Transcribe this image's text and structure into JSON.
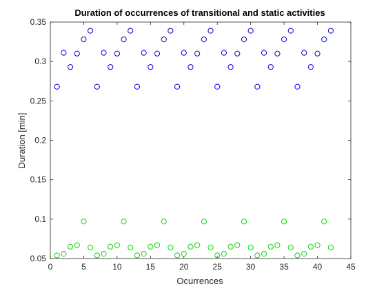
{
  "chart_data": {
    "type": "scatter",
    "title": "Duration of occurrences of transitional and static activities",
    "xlabel": "Ocurrences",
    "ylabel": "Duration [min]",
    "xlim": [
      0,
      45
    ],
    "ylim": [
      0.05,
      0.35
    ],
    "xticks": [
      0,
      5,
      10,
      15,
      20,
      25,
      30,
      35,
      40,
      45
    ],
    "yticks": [
      0.05,
      0.1,
      0.15,
      0.2,
      0.25,
      0.3,
      0.35
    ],
    "ytick_labels": [
      "0.05",
      "0.1",
      "0.15",
      "0.2",
      "0.25",
      "0.3",
      "0.35"
    ],
    "grid": false,
    "marker": "open-circle",
    "series": [
      {
        "color": "#0000cc",
        "x": [
          1,
          2,
          3,
          4,
          5,
          6,
          7,
          8,
          9,
          10,
          11,
          12,
          13,
          14,
          15,
          16,
          17,
          18,
          19,
          20,
          21,
          22,
          23,
          24,
          25,
          26,
          27,
          28,
          29,
          30,
          31,
          32,
          33,
          34,
          35,
          36,
          37,
          38,
          39,
          40,
          41,
          42
        ],
        "y": [
          0.268,
          0.311,
          0.293,
          0.31,
          0.328,
          0.339,
          0.268,
          0.311,
          0.293,
          0.31,
          0.328,
          0.339,
          0.268,
          0.311,
          0.293,
          0.31,
          0.328,
          0.339,
          0.268,
          0.311,
          0.293,
          0.31,
          0.328,
          0.339,
          0.268,
          0.311,
          0.293,
          0.31,
          0.328,
          0.339,
          0.268,
          0.311,
          0.293,
          0.31,
          0.328,
          0.339,
          0.268,
          0.311,
          0.293,
          0.31,
          0.328,
          0.339
        ]
      },
      {
        "color": "#00dd00",
        "x": [
          1,
          2,
          3,
          4,
          5,
          6,
          7,
          8,
          9,
          10,
          11,
          12,
          13,
          14,
          15,
          16,
          17,
          18,
          19,
          20,
          21,
          22,
          23,
          24,
          25,
          26,
          27,
          28,
          29,
          30,
          31,
          32,
          33,
          34,
          35,
          36,
          37,
          38,
          39,
          40,
          41,
          42
        ],
        "y": [
          0.054,
          0.056,
          0.065,
          0.067,
          0.097,
          0.064,
          0.054,
          0.056,
          0.065,
          0.067,
          0.097,
          0.064,
          0.054,
          0.056,
          0.065,
          0.067,
          0.097,
          0.064,
          0.054,
          0.056,
          0.065,
          0.067,
          0.097,
          0.064,
          0.054,
          0.056,
          0.065,
          0.067,
          0.097,
          0.064,
          0.054,
          0.056,
          0.065,
          0.067,
          0.097,
          0.064,
          0.054,
          0.056,
          0.065,
          0.067,
          0.097,
          0.064
        ]
      }
    ]
  }
}
